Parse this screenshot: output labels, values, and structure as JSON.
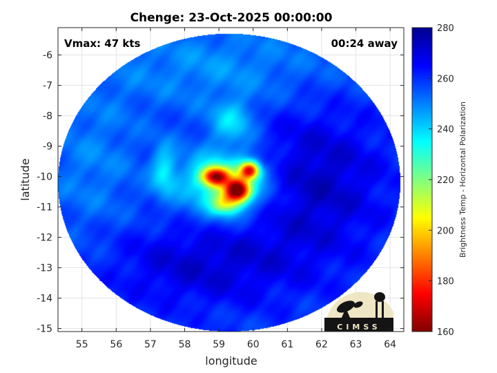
{
  "chart_data": {
    "type": "heatmap",
    "title": "Chenge: 23-Oct-2025 00:00:00",
    "xlabel": "longitude",
    "ylabel": "latitude",
    "xlim": [
      54.3,
      64.4
    ],
    "ylim": [
      -15.1,
      -5.1
    ],
    "x_ticks": [
      55,
      56,
      57,
      58,
      59,
      60,
      61,
      62,
      63,
      64
    ],
    "y_ticks": [
      -6,
      -7,
      -8,
      -9,
      -10,
      -11,
      -12,
      -13,
      -14,
      -15
    ],
    "grid": true,
    "annotations": {
      "vmax": "Vmax: 47 kts",
      "time_offset": "00:24 away"
    },
    "colorbar": {
      "label": "Brightness Temp - Horizontal Polarization",
      "range": [
        160,
        280
      ],
      "ticks": [
        160,
        180,
        200,
        220,
        240,
        260,
        280
      ],
      "colormap": "jet",
      "colors": [
        "#800000",
        "#ff0000",
        "#ffff00",
        "#00ffff",
        "#0080ff",
        "#0000ff",
        "#000090"
      ]
    },
    "swath": {
      "center": [
        59.3,
        -10.2
      ],
      "radius_lon": 5.0,
      "radius_lat": 4.9,
      "background_tb": 258
    },
    "features": [
      {
        "name": "eye-wall-west",
        "lon": 58.9,
        "lat": -10.0,
        "sigma_lon": 0.28,
        "sigma_lat": 0.22,
        "tb": 185
      },
      {
        "name": "eye-wall-east",
        "lon": 59.55,
        "lat": -10.45,
        "sigma_lon": 0.25,
        "sigma_lat": 0.25,
        "tb": 170
      },
      {
        "name": "eye-wall-ne",
        "lon": 59.9,
        "lat": -9.8,
        "sigma_lon": 0.2,
        "sigma_lat": 0.2,
        "tb": 185
      },
      {
        "name": "inner-core",
        "lon": 59.2,
        "lat": -10.2,
        "sigma_lon": 0.9,
        "sigma_lat": 0.75,
        "tb": 225
      },
      {
        "name": "southern-band",
        "lon": 59.2,
        "lat": -10.9,
        "sigma_lon": 0.3,
        "sigma_lat": 0.25,
        "tb": 225
      },
      {
        "name": "outer-band-north",
        "lon": 59.4,
        "lat": -8.2,
        "sigma_lon": 0.45,
        "sigma_lat": 0.5,
        "tb": 240
      },
      {
        "name": "outer-band-west",
        "lon": 57.4,
        "lat": -9.8,
        "sigma_lon": 0.25,
        "sigma_lat": 0.6,
        "tb": 240
      },
      {
        "name": "cold-east",
        "lon": 61.8,
        "lat": -10.2,
        "sigma_lon": 1.5,
        "sigma_lat": 1.8,
        "tb": 272
      },
      {
        "name": "cold-south",
        "lon": 58.5,
        "lat": -12.9,
        "sigma_lon": 2.0,
        "sigma_lat": 1.0,
        "tb": 270
      },
      {
        "name": "warm-north",
        "lon": 59.0,
        "lat": -6.4,
        "sigma_lon": 2.5,
        "sigma_lat": 1.0,
        "tb": 248
      },
      {
        "name": "warm-west",
        "lon": 55.3,
        "lat": -9.5,
        "sigma_lon": 1.0,
        "sigma_lat": 1.8,
        "tb": 250
      }
    ]
  },
  "logo": {
    "text": "CIMSS"
  }
}
